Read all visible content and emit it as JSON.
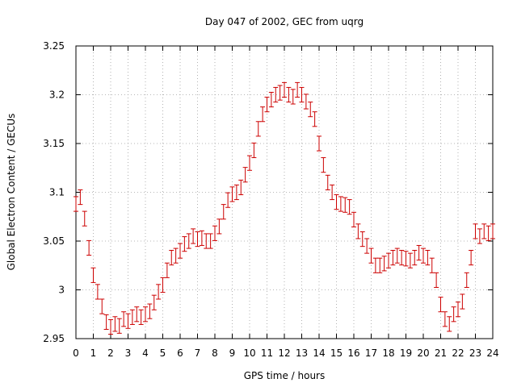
{
  "chart_data": {
    "type": "scatter",
    "title": "Day 047 of 2002, GEC from uqrg",
    "xlabel": "GPS time / hours",
    "ylabel": "Global Electron Content / GECUs",
    "xlim": [
      0,
      24
    ],
    "ylim": [
      2.95,
      3.25
    ],
    "x_ticks": [
      0,
      1,
      2,
      3,
      4,
      5,
      6,
      7,
      8,
      9,
      10,
      11,
      12,
      13,
      14,
      15,
      16,
      17,
      18,
      19,
      20,
      21,
      22,
      23,
      24
    ],
    "y_ticks": [
      2.95,
      3.0,
      3.05,
      3.1,
      3.15,
      3.2,
      3.25
    ],
    "y_tick_labels": [
      "2.95",
      "3",
      "3.05",
      "3.1",
      "3.15",
      "3.2",
      "3.25"
    ],
    "grid": true,
    "marker": "errorbar",
    "color": "#cc0000",
    "error_bar_half_width": 0.0075,
    "series": [
      {
        "x": [
          0.0,
          0.25,
          0.5,
          0.75,
          1.0,
          1.25,
          1.5,
          1.75,
          2.0,
          2.25,
          2.5,
          2.75,
          3.0,
          3.25,
          3.5,
          3.75,
          4.0,
          4.25,
          4.5,
          4.75,
          5.0,
          5.25,
          5.5,
          5.75,
          6.0,
          6.25,
          6.5,
          6.75,
          7.0,
          7.25,
          7.5,
          7.75,
          8.0,
          8.25,
          8.5,
          8.75,
          9.0,
          9.25,
          9.5,
          9.75,
          10.0,
          10.25,
          10.5,
          10.75,
          11.0,
          11.25,
          11.5,
          11.75,
          12.0,
          12.25,
          12.5,
          12.75,
          13.0,
          13.25,
          13.5,
          13.75,
          14.0,
          14.25,
          14.5,
          14.75,
          15.0,
          15.25,
          15.5,
          15.75,
          16.0,
          16.25,
          16.5,
          16.75,
          17.0,
          17.25,
          17.5,
          17.75,
          18.0,
          18.25,
          18.5,
          18.75,
          19.0,
          19.25,
          19.5,
          19.75,
          20.0,
          20.25,
          20.5,
          20.75,
          21.0,
          21.25,
          21.5,
          21.75,
          22.0,
          22.25,
          22.5,
          22.75,
          23.0,
          23.25,
          23.5,
          23.75,
          24.0
        ],
        "y": [
          3.088,
          3.095,
          3.073,
          3.043,
          3.015,
          2.998,
          2.983,
          2.967,
          2.962,
          2.965,
          2.963,
          2.97,
          2.968,
          2.972,
          2.975,
          2.972,
          2.975,
          2.978,
          2.987,
          2.998,
          3.005,
          3.02,
          3.033,
          3.035,
          3.04,
          3.047,
          3.05,
          3.055,
          3.052,
          3.053,
          3.05,
          3.05,
          3.058,
          3.065,
          3.08,
          3.092,
          3.098,
          3.1,
          3.105,
          3.118,
          3.13,
          3.143,
          3.165,
          3.18,
          3.19,
          3.195,
          3.2,
          3.202,
          3.205,
          3.2,
          3.198,
          3.205,
          3.2,
          3.193,
          3.185,
          3.175,
          3.15,
          3.128,
          3.11,
          3.1,
          3.09,
          3.088,
          3.087,
          3.085,
          3.072,
          3.06,
          3.052,
          3.045,
          3.035,
          3.025,
          3.025,
          3.027,
          3.03,
          3.033,
          3.035,
          3.033,
          3.032,
          3.03,
          3.033,
          3.038,
          3.035,
          3.033,
          3.025,
          3.01,
          2.985,
          2.97,
          2.965,
          2.975,
          2.98,
          2.988,
          3.01,
          3.033,
          3.06,
          3.055,
          3.06,
          3.058,
          3.06
        ]
      }
    ]
  }
}
